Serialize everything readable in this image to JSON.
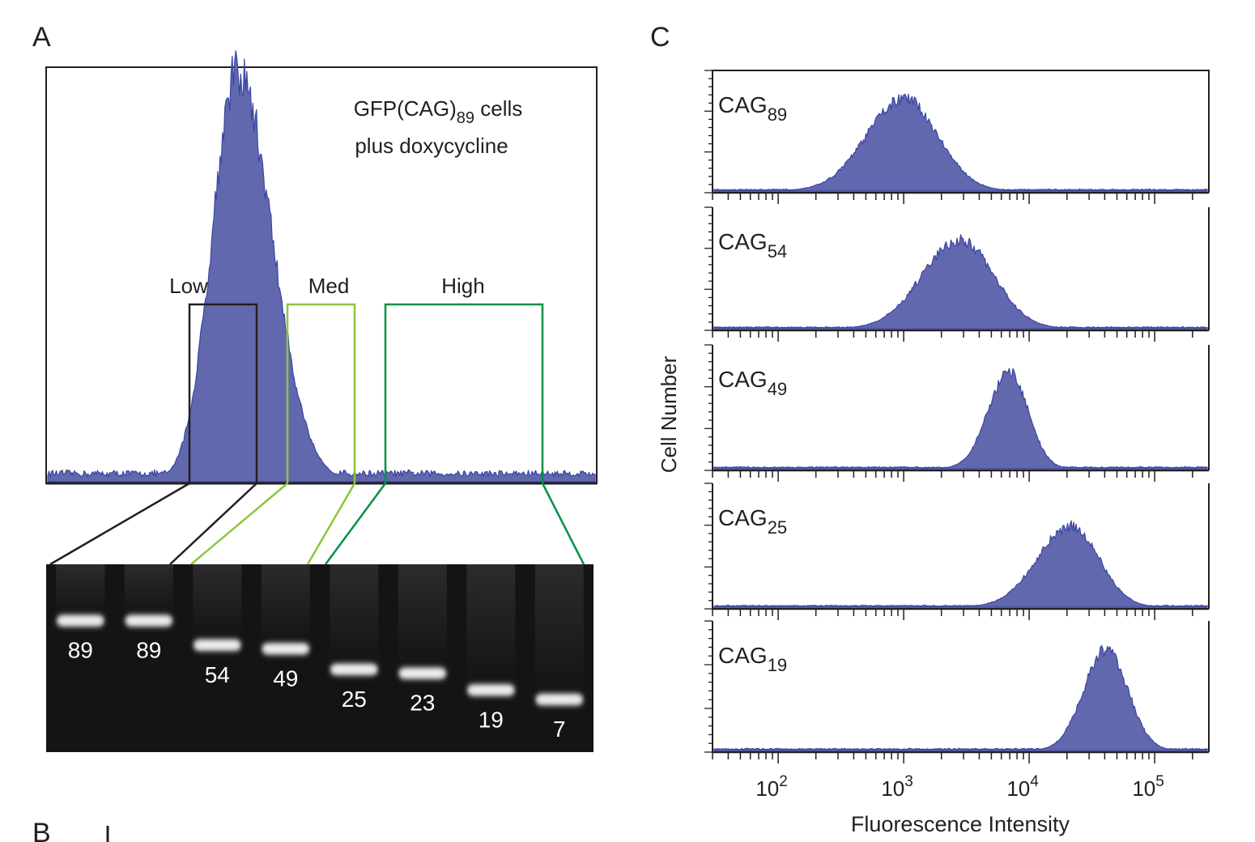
{
  "panels": {
    "a_label": "A",
    "b_label": "B",
    "c_label": "C"
  },
  "colors": {
    "hist_fill": "#6268ad",
    "hist_edge": "#3a45a3",
    "gate_low": "#231f20",
    "gate_med": "#8cc63f",
    "gate_high": "#009245",
    "gel_bg": "#111111"
  },
  "panel_a": {
    "annotation_line1_prefix": "GFP(CAG)",
    "annotation_line1_sub": "89",
    "annotation_line1_suffix": " cells",
    "annotation_line2": "plus doxycycline",
    "gates": [
      {
        "name": "Low"
      },
      {
        "name": "Med"
      },
      {
        "name": "High"
      }
    ]
  },
  "gel": {
    "lanes": [
      {
        "label": "89",
        "band": 0.3
      },
      {
        "label": "89",
        "band": 0.3
      },
      {
        "label": "54",
        "band": 0.43
      },
      {
        "label": "49",
        "band": 0.45
      },
      {
        "label": "25",
        "band": 0.56
      },
      {
        "label": "23",
        "band": 0.58
      },
      {
        "label": "19",
        "band": 0.67
      },
      {
        "label": "7",
        "band": 0.72
      }
    ]
  },
  "chart_data": [
    {
      "type": "area",
      "panel": "A",
      "title": "",
      "annotation": "GFP(CAG)89 cells plus doxycycline",
      "xlabel": "",
      "ylabel": "",
      "x_scale": "log",
      "xlim": [
        100,
        300000
      ],
      "series": [
        {
          "name": "GFP(CAG)89 cells plus doxycycline",
          "mode": 1600,
          "sigma_left": 0.16,
          "sigma_right": 0.22,
          "peak": 1.0,
          "baseline": 0.02
        }
      ],
      "gates": [
        {
          "name": "Low",
          "x_range": [
            800,
            1500
          ]
        },
        {
          "name": "Med",
          "x_range": [
            3000,
            8000
          ]
        },
        {
          "name": "High",
          "x_range": [
            11000,
            150000
          ]
        }
      ]
    },
    {
      "type": "area",
      "panel": "C",
      "title": "",
      "xlabel": "Fluorescence Intensity",
      "ylabel": "Cell Number",
      "x_scale": "log",
      "xlim": [
        30,
        270000
      ],
      "xticks": [
        {
          "base": "10",
          "exp": "2",
          "value": 100
        },
        {
          "base": "10",
          "exp": "3",
          "value": 1000
        },
        {
          "base": "10",
          "exp": "4",
          "value": 10000
        },
        {
          "base": "10",
          "exp": "5",
          "value": 100000
        }
      ],
      "series": [
        {
          "name_prefix": "CAG",
          "name_sub": "89",
          "mode": 1000,
          "sigma_left": 0.3,
          "sigma_right": 0.27,
          "peak": 1.0
        },
        {
          "name_prefix": "CAG",
          "name_sub": "54",
          "mode": 2800,
          "sigma_left": 0.3,
          "sigma_right": 0.27,
          "peak": 0.95
        },
        {
          "name_prefix": "CAG",
          "name_sub": "49",
          "mode": 7000,
          "sigma_left": 0.17,
          "sigma_right": 0.15,
          "peak": 1.0
        },
        {
          "name_prefix": "CAG",
          "name_sub": "25",
          "mode": 22000,
          "sigma_left": 0.27,
          "sigma_right": 0.22,
          "peak": 0.85
        },
        {
          "name_prefix": "CAG",
          "name_sub": "19",
          "mode": 42000,
          "sigma_left": 0.18,
          "sigma_right": 0.17,
          "peak": 1.0
        }
      ]
    }
  ]
}
